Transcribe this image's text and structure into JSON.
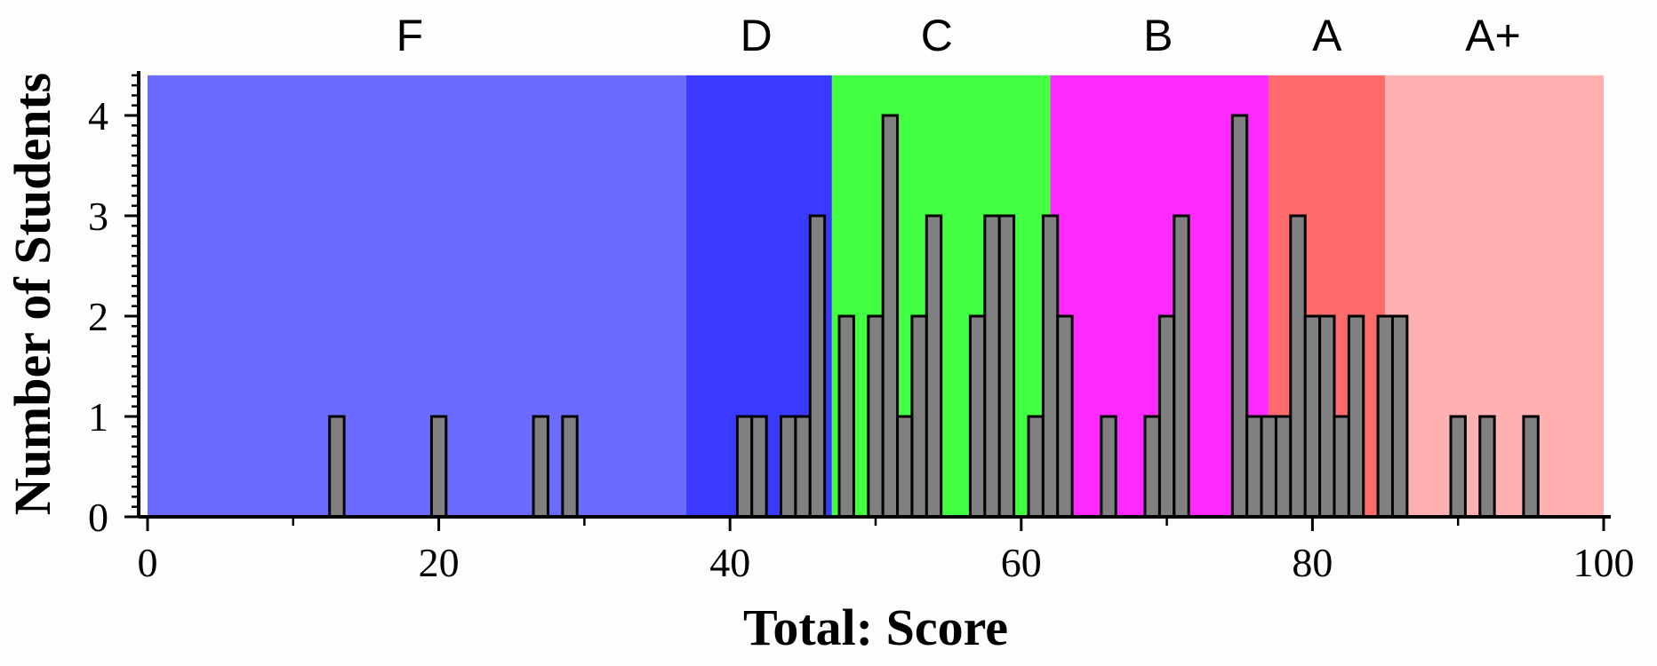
{
  "chart_data": {
    "type": "bar",
    "xlabel": "Total: Score",
    "ylabel": "Number of Students",
    "xlim": [
      0,
      100
    ],
    "ylim": [
      0,
      4.4
    ],
    "x_ticks": [
      0,
      20,
      40,
      60,
      80,
      100
    ],
    "y_ticks": [
      0,
      1,
      2,
      3,
      4
    ],
    "bin_width": 1,
    "grade_bands": [
      {
        "label": "F",
        "from": 0,
        "to": 37,
        "color": "#6b6bff"
      },
      {
        "label": "D",
        "from": 37,
        "to": 47,
        "color": "#3a3aff"
      },
      {
        "label": "C",
        "from": 47,
        "to": 62,
        "color": "#42ff42"
      },
      {
        "label": "B",
        "from": 62,
        "to": 77,
        "color": "#ff2aff"
      },
      {
        "label": "A",
        "from": 77,
        "to": 85,
        "color": "#ff6a6a"
      },
      {
        "label": "A+",
        "from": 85,
        "to": 100,
        "color": "#ffb0b0"
      }
    ],
    "bars": [
      {
        "x": 13,
        "count": 1
      },
      {
        "x": 20,
        "count": 1
      },
      {
        "x": 27,
        "count": 1
      },
      {
        "x": 29,
        "count": 1
      },
      {
        "x": 41,
        "count": 1
      },
      {
        "x": 42,
        "count": 1
      },
      {
        "x": 44,
        "count": 1
      },
      {
        "x": 45,
        "count": 1
      },
      {
        "x": 46,
        "count": 3
      },
      {
        "x": 48,
        "count": 2
      },
      {
        "x": 50,
        "count": 2
      },
      {
        "x": 51,
        "count": 4
      },
      {
        "x": 52,
        "count": 1
      },
      {
        "x": 53,
        "count": 2
      },
      {
        "x": 54,
        "count": 3
      },
      {
        "x": 57,
        "count": 2
      },
      {
        "x": 58,
        "count": 3
      },
      {
        "x": 59,
        "count": 3
      },
      {
        "x": 61,
        "count": 1
      },
      {
        "x": 62,
        "count": 3
      },
      {
        "x": 63,
        "count": 2
      },
      {
        "x": 66,
        "count": 1
      },
      {
        "x": 69,
        "count": 1
      },
      {
        "x": 70,
        "count": 2
      },
      {
        "x": 71,
        "count": 3
      },
      {
        "x": 75,
        "count": 4
      },
      {
        "x": 76,
        "count": 1
      },
      {
        "x": 77,
        "count": 1
      },
      {
        "x": 78,
        "count": 1
      },
      {
        "x": 79,
        "count": 3
      },
      {
        "x": 80,
        "count": 2
      },
      {
        "x": 81,
        "count": 2
      },
      {
        "x": 82,
        "count": 1
      },
      {
        "x": 83,
        "count": 2
      },
      {
        "x": 85,
        "count": 2
      },
      {
        "x": 86,
        "count": 2
      },
      {
        "x": 90,
        "count": 1
      },
      {
        "x": 92,
        "count": 1
      },
      {
        "x": 95,
        "count": 1
      }
    ]
  }
}
